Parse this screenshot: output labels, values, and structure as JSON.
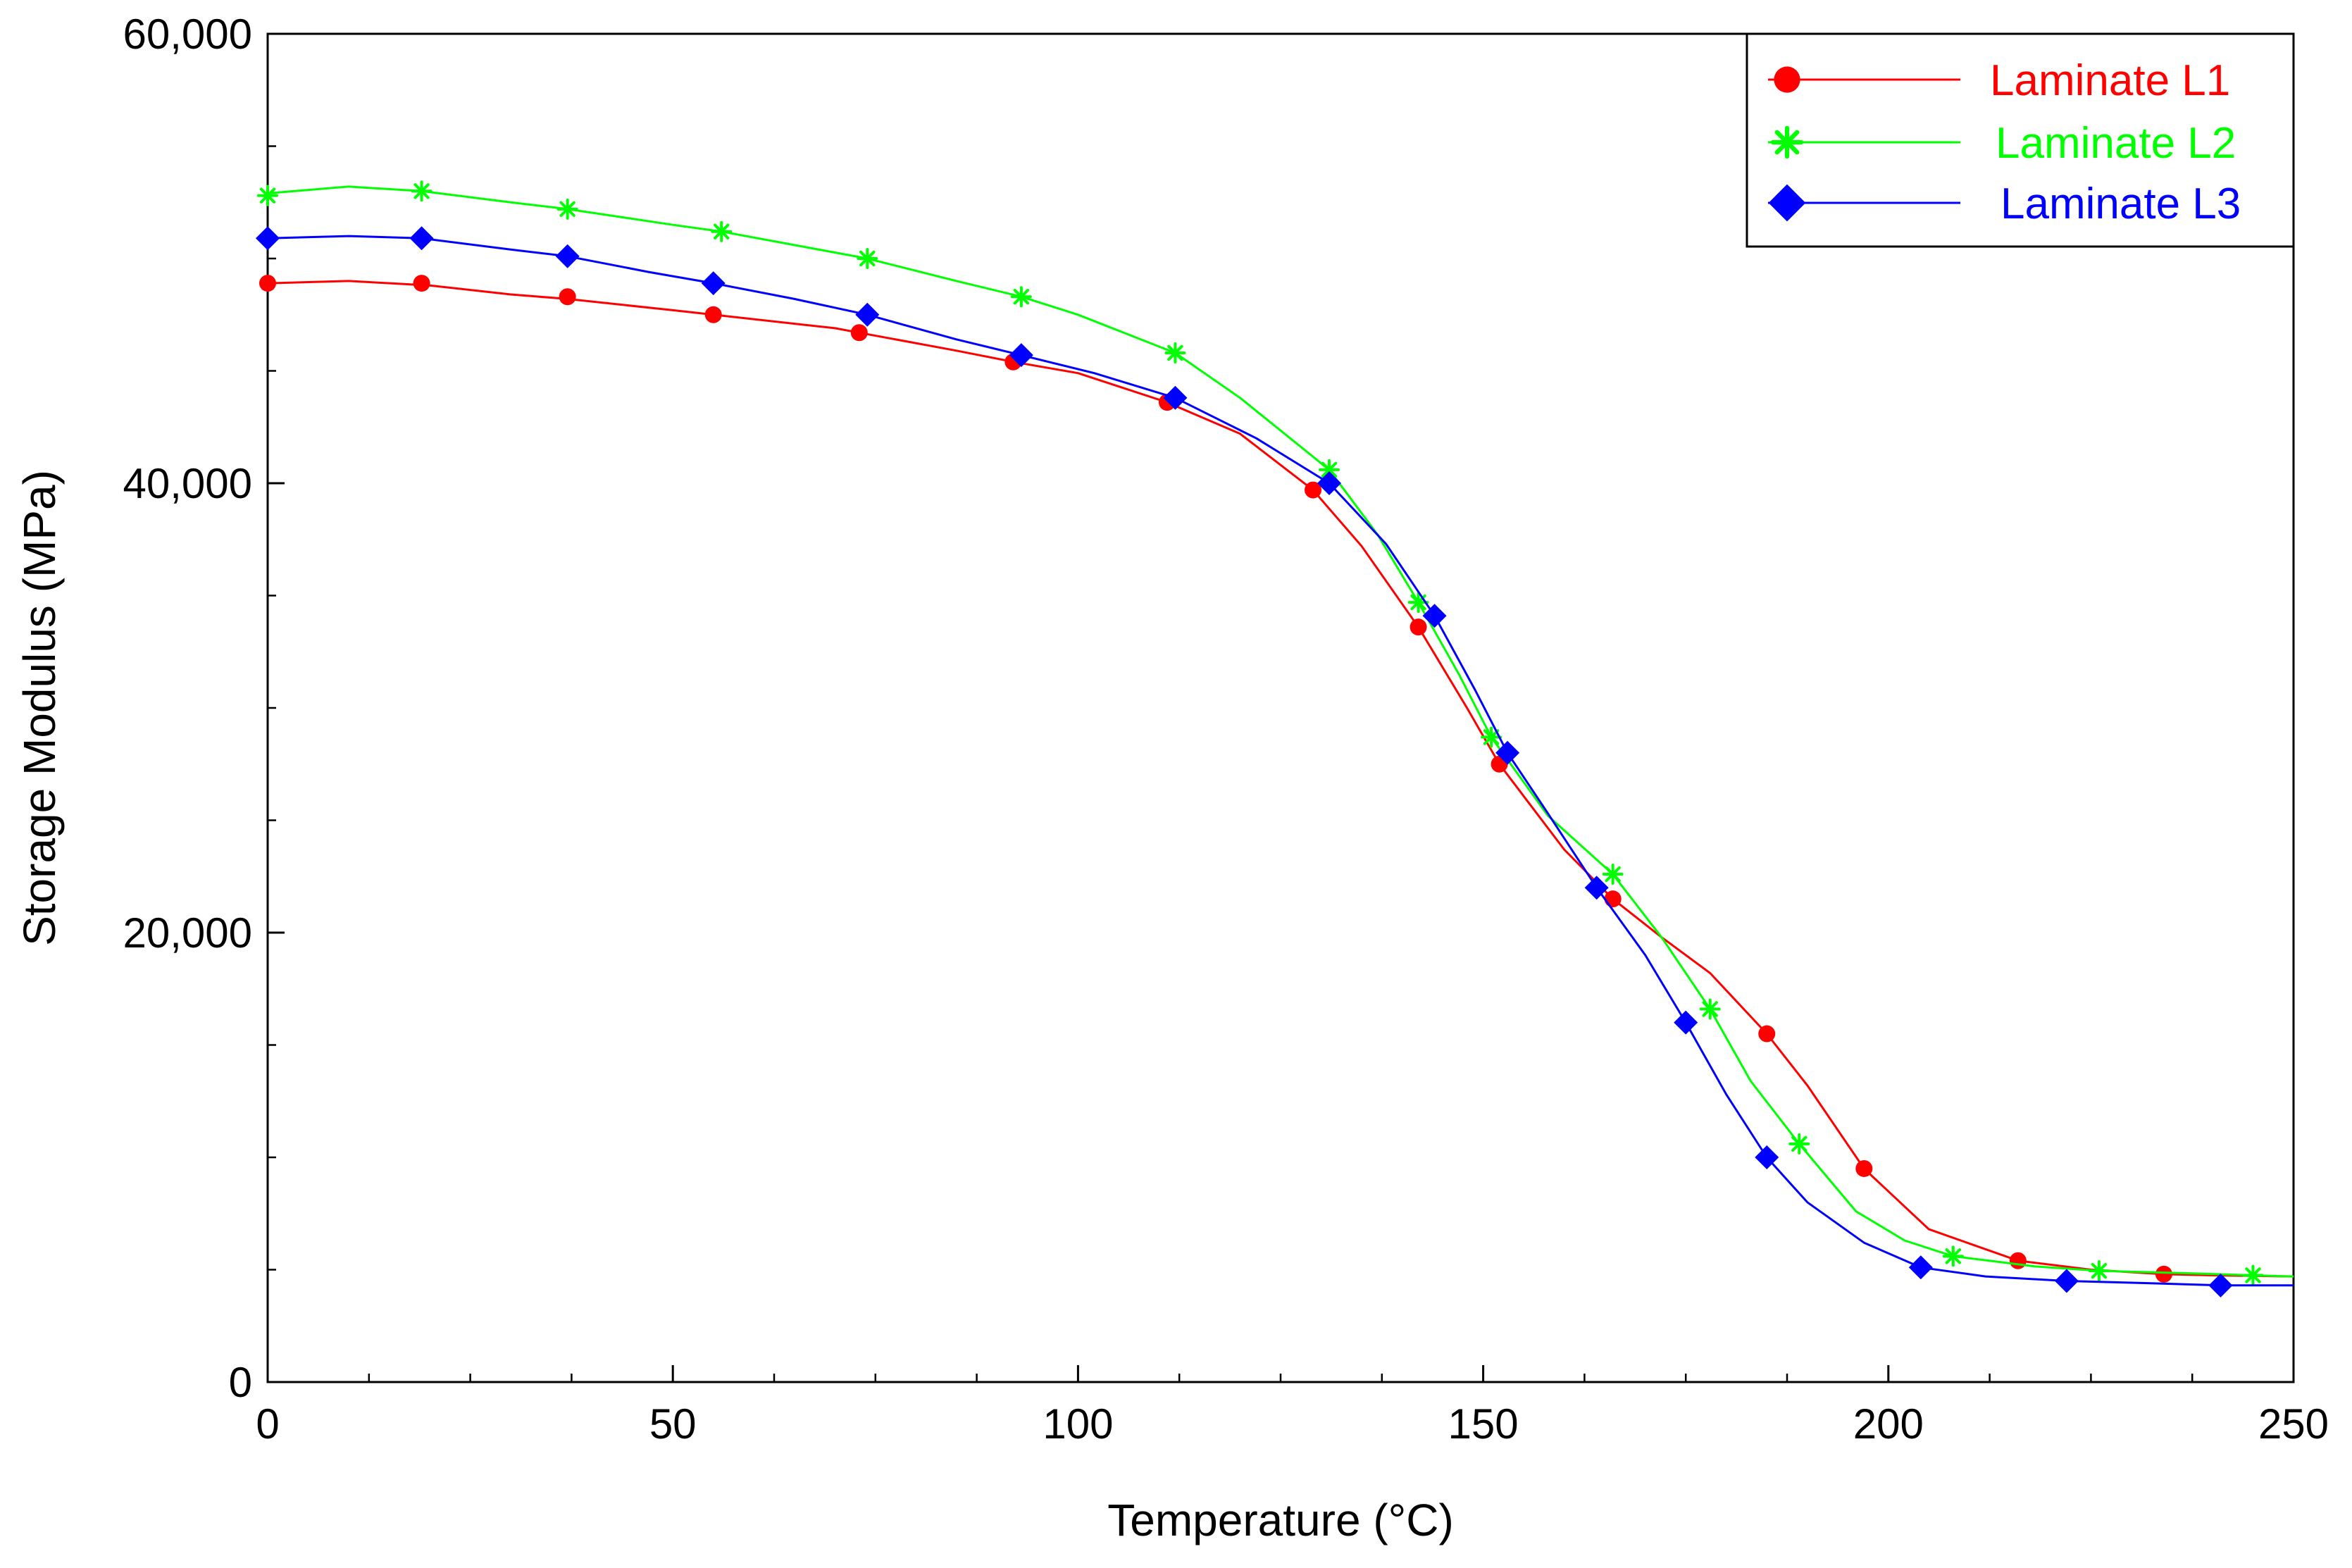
{
  "chart_data": {
    "type": "line",
    "title": "",
    "xlabel": "Temperature (°C)",
    "ylabel": "Storage Modulus (MPa)",
    "xlim": [
      0,
      250
    ],
    "ylim": [
      0,
      60000
    ],
    "x_ticks": [
      0,
      50,
      100,
      150,
      200,
      250
    ],
    "x_tick_labels": [
      "0",
      "50",
      "100",
      "150",
      "200",
      "250"
    ],
    "y_ticks": [
      0,
      20000,
      40000,
      60000
    ],
    "y_tick_labels": [
      "0",
      "20,000",
      "40,000",
      "60,000"
    ],
    "x_minor_step": 12.5,
    "y_minor_step": 5000,
    "grid": false,
    "legend_position": "top-right",
    "series": [
      {
        "name": "Laminate L1",
        "color": "#ff0000",
        "marker": "circle",
        "curve": [
          [
            0,
            48900
          ],
          [
            10,
            49000
          ],
          [
            20,
            48800
          ],
          [
            30,
            48400
          ],
          [
            37,
            48200
          ],
          [
            50,
            47700
          ],
          [
            55,
            47500
          ],
          [
            70,
            46900
          ],
          [
            73,
            46700
          ],
          [
            85,
            45900
          ],
          [
            92,
            45400
          ],
          [
            100,
            44900
          ],
          [
            111,
            43600
          ],
          [
            120,
            42200
          ],
          [
            129,
            39700
          ],
          [
            135,
            37200
          ],
          [
            142,
            33600
          ],
          [
            148,
            30000
          ],
          [
            152,
            27500
          ],
          [
            160,
            23700
          ],
          [
            166,
            21500
          ],
          [
            172,
            19800
          ],
          [
            178,
            18200
          ],
          [
            185,
            15500
          ],
          [
            190,
            13200
          ],
          [
            197,
            9500
          ],
          [
            205,
            6800
          ],
          [
            216,
            5400
          ],
          [
            225,
            5000
          ],
          [
            234,
            4800
          ],
          [
            240,
            4750
          ],
          [
            250,
            4700
          ]
        ],
        "markers": [
          [
            0,
            48900
          ],
          [
            19,
            48900
          ],
          [
            37,
            48300
          ],
          [
            55,
            47500
          ],
          [
            73,
            46700
          ],
          [
            92,
            45400
          ],
          [
            111,
            43600
          ],
          [
            129,
            39700
          ],
          [
            142,
            33600
          ],
          [
            152,
            27500
          ],
          [
            166,
            21500
          ],
          [
            185,
            15500
          ],
          [
            197,
            9500
          ],
          [
            216,
            5400
          ],
          [
            234,
            4800
          ]
        ]
      },
      {
        "name": "Laminate L2",
        "color": "#00ff00",
        "marker": "star",
        "curve": [
          [
            0,
            52900
          ],
          [
            10,
            53200
          ],
          [
            19,
            53000
          ],
          [
            30,
            52500
          ],
          [
            37,
            52200
          ],
          [
            50,
            51500
          ],
          [
            56,
            51200
          ],
          [
            65,
            50600
          ],
          [
            74,
            50000
          ],
          [
            85,
            49000
          ],
          [
            93,
            48300
          ],
          [
            100,
            47500
          ],
          [
            112,
            45800
          ],
          [
            120,
            43800
          ],
          [
            131,
            40600
          ],
          [
            137,
            37700
          ],
          [
            142,
            34700
          ],
          [
            147,
            31500
          ],
          [
            151,
            28700
          ],
          [
            158,
            25200
          ],
          [
            166,
            22600
          ],
          [
            172,
            19800
          ],
          [
            178,
            16600
          ],
          [
            183,
            13400
          ],
          [
            189,
            10600
          ],
          [
            196,
            7600
          ],
          [
            202,
            6300
          ],
          [
            208,
            5600
          ],
          [
            218,
            5150
          ],
          [
            226,
            4950
          ],
          [
            236,
            4850
          ],
          [
            245,
            4750
          ],
          [
            250,
            4700
          ]
        ],
        "markers": [
          [
            0,
            52800
          ],
          [
            19,
            53000
          ],
          [
            37,
            52200
          ],
          [
            56,
            51200
          ],
          [
            74,
            50000
          ],
          [
            93,
            48300
          ],
          [
            112,
            45800
          ],
          [
            131,
            40600
          ],
          [
            142,
            34700
          ],
          [
            151,
            28700
          ],
          [
            166,
            22600
          ],
          [
            178,
            16600
          ],
          [
            189,
            10600
          ],
          [
            208,
            5600
          ],
          [
            226,
            4950
          ],
          [
            245,
            4750
          ]
        ]
      },
      {
        "name": "Laminate L3",
        "color": "#0000ff",
        "marker": "diamond",
        "curve": [
          [
            0,
            50900
          ],
          [
            10,
            51000
          ],
          [
            19,
            50900
          ],
          [
            30,
            50400
          ],
          [
            37,
            50100
          ],
          [
            47,
            49400
          ],
          [
            55,
            48900
          ],
          [
            65,
            48200
          ],
          [
            74,
            47500
          ],
          [
            85,
            46400
          ],
          [
            93,
            45700
          ],
          [
            102,
            44900
          ],
          [
            112,
            43800
          ],
          [
            122,
            42000
          ],
          [
            131,
            40000
          ],
          [
            138,
            37300
          ],
          [
            144,
            34100
          ],
          [
            149,
            30800
          ],
          [
            153,
            28000
          ],
          [
            158,
            25300
          ],
          [
            164,
            22000
          ],
          [
            170,
            19000
          ],
          [
            175,
            16000
          ],
          [
            180,
            12800
          ],
          [
            185,
            10000
          ],
          [
            190,
            8000
          ],
          [
            197,
            6200
          ],
          [
            204,
            5100
          ],
          [
            212,
            4700
          ],
          [
            222,
            4500
          ],
          [
            232,
            4400
          ],
          [
            241,
            4300
          ],
          [
            250,
            4300
          ]
        ],
        "markers": [
          [
            0,
            50900
          ],
          [
            19,
            50900
          ],
          [
            37,
            50100
          ],
          [
            55,
            48900
          ],
          [
            74,
            47500
          ],
          [
            93,
            45700
          ],
          [
            112,
            43800
          ],
          [
            131,
            40000
          ],
          [
            144,
            34100
          ],
          [
            153,
            28000
          ],
          [
            164,
            22000
          ],
          [
            175,
            16000
          ],
          [
            185,
            10000
          ],
          [
            204,
            5100
          ],
          [
            222,
            4500
          ],
          [
            241,
            4300
          ]
        ]
      }
    ]
  }
}
